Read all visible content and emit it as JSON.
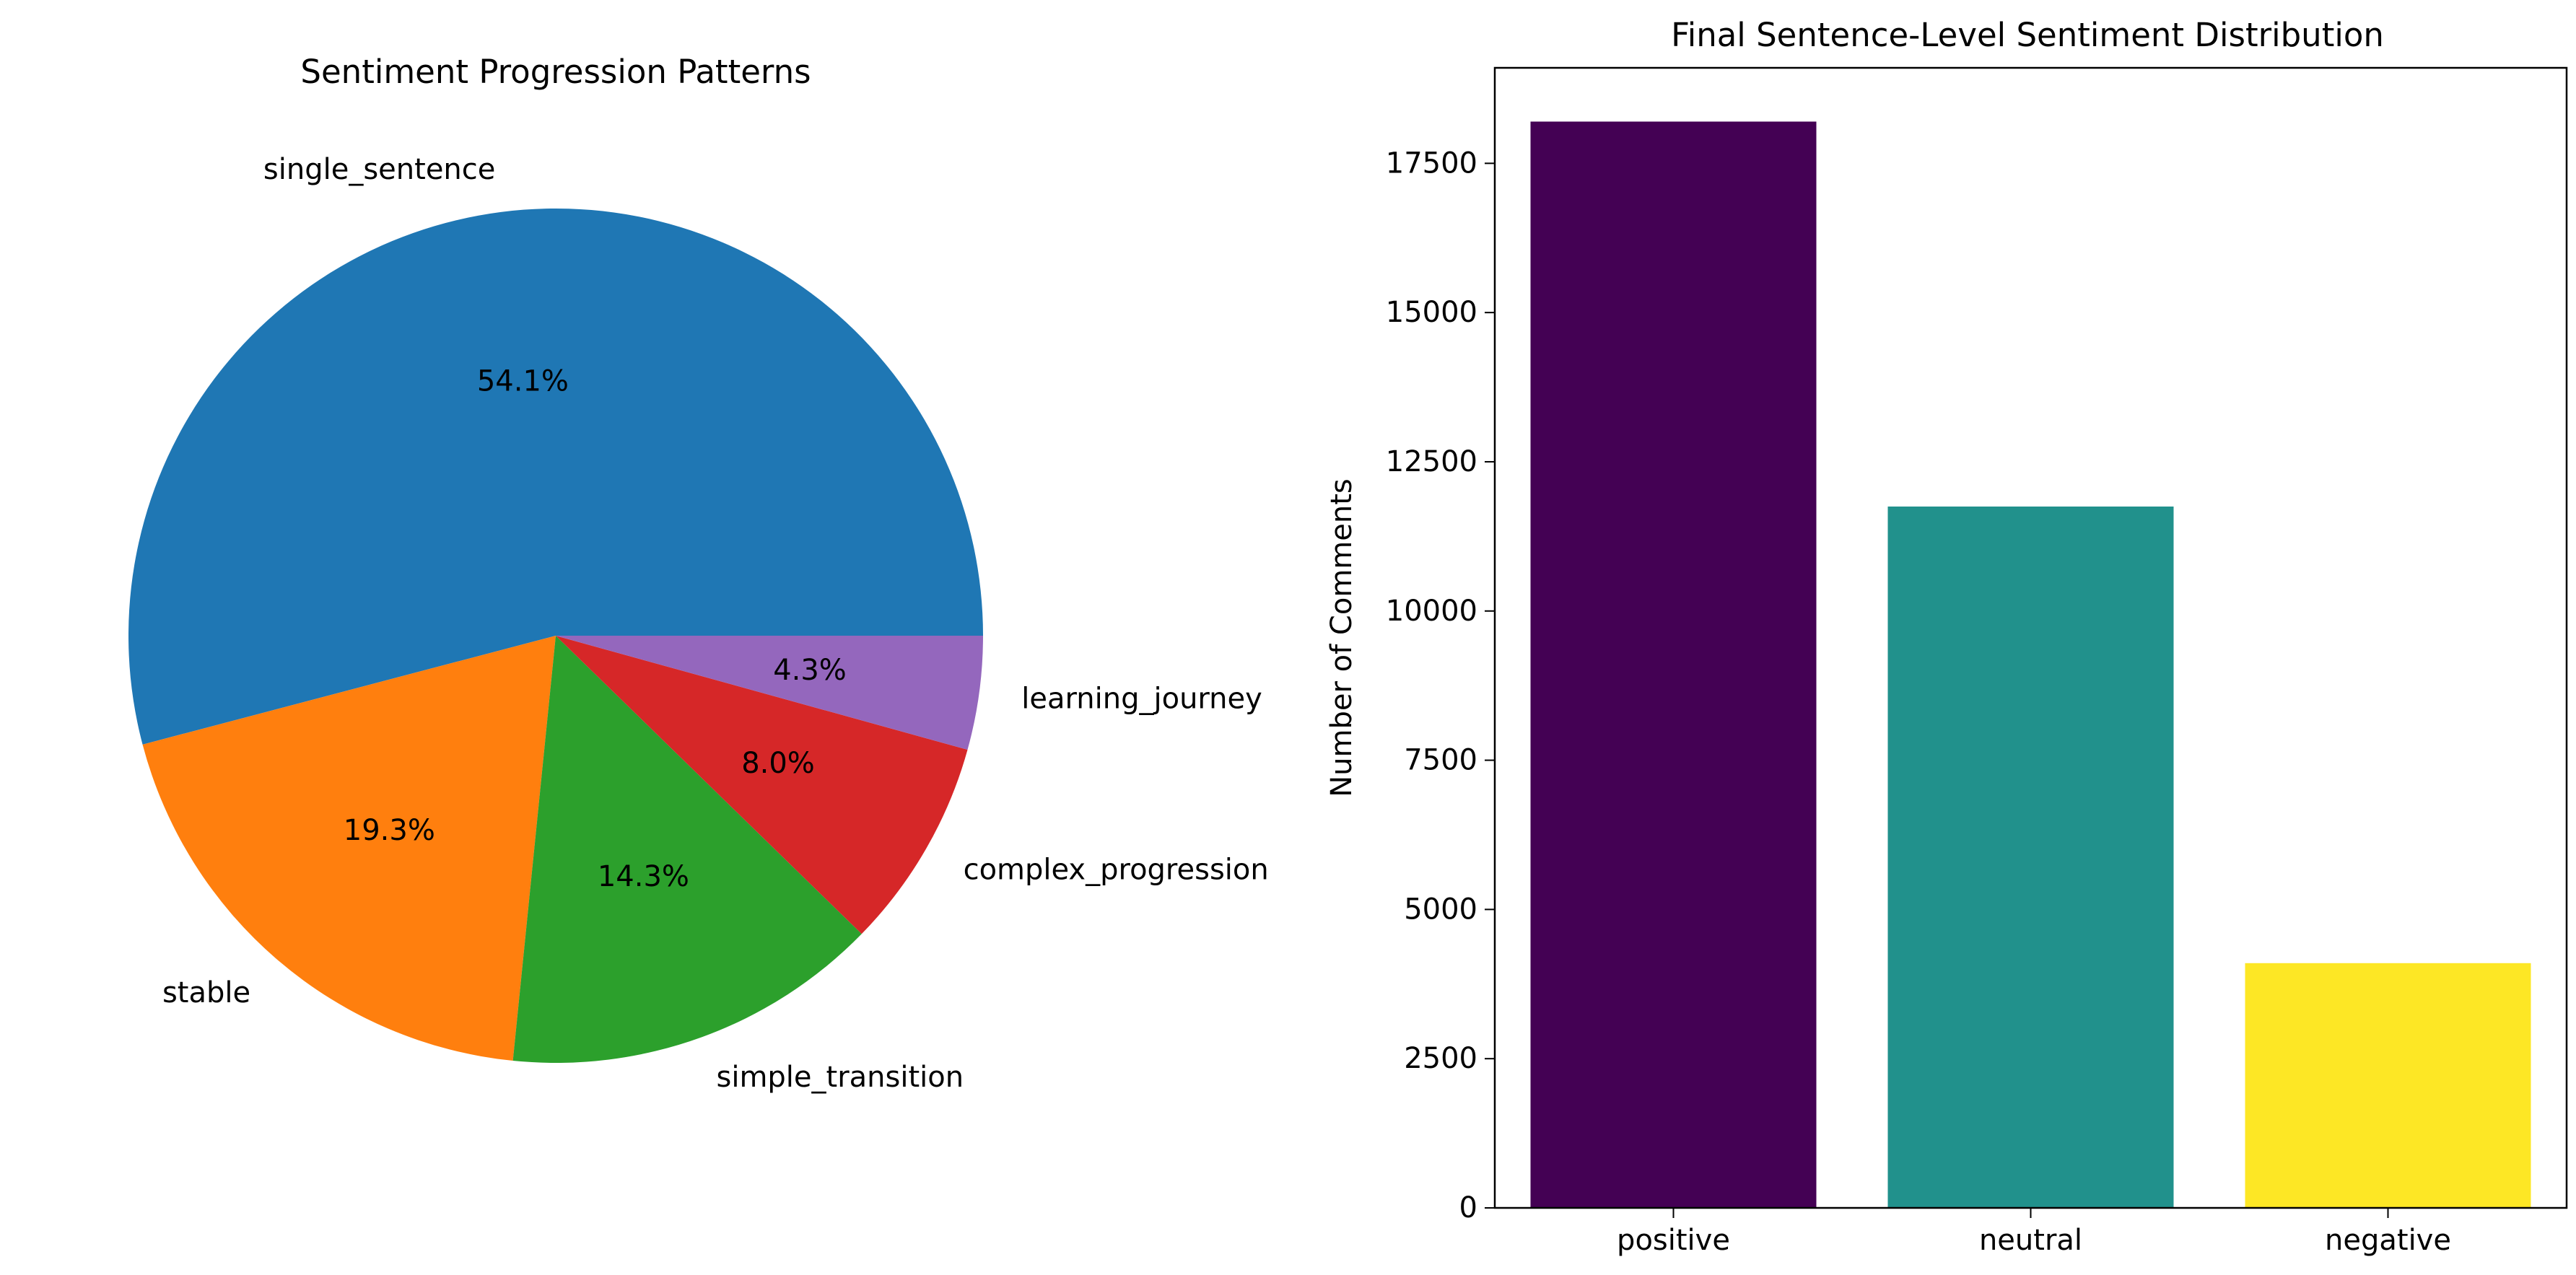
{
  "chart_data": [
    {
      "type": "pie",
      "title": "Sentiment Progression Patterns",
      "slices": [
        {
          "label": "single_sentence",
          "value": 54.1,
          "pct_label": "54.1%",
          "color": "#1f77b4"
        },
        {
          "label": "stable",
          "value": 19.3,
          "pct_label": "19.3%",
          "color": "#ff7f0e"
        },
        {
          "label": "simple_transition",
          "value": 14.3,
          "pct_label": "14.3%",
          "color": "#2ca02c"
        },
        {
          "label": "complex_progression",
          "value": 8.0,
          "pct_label": "8.0%",
          "color": "#d62728"
        },
        {
          "label": "learning_journey",
          "value": 4.3,
          "pct_label": "4.3%",
          "color": "#9467bd"
        }
      ],
      "start_angle": 0,
      "direction": "counterclockwise"
    },
    {
      "type": "bar",
      "title": "Final Sentence-Level Sentiment Distribution",
      "categories": [
        "positive",
        "neutral",
        "negative"
      ],
      "values": [
        18200,
        11750,
        4100
      ],
      "colors": [
        "#440154",
        "#21918c",
        "#fde725"
      ],
      "xlabel": "",
      "ylabel": "Number of Comments",
      "ylim": [
        0,
        19100
      ],
      "yticks": [
        0,
        2500,
        5000,
        7500,
        10000,
        12500,
        15000,
        17500
      ],
      "grid": false
    }
  ]
}
